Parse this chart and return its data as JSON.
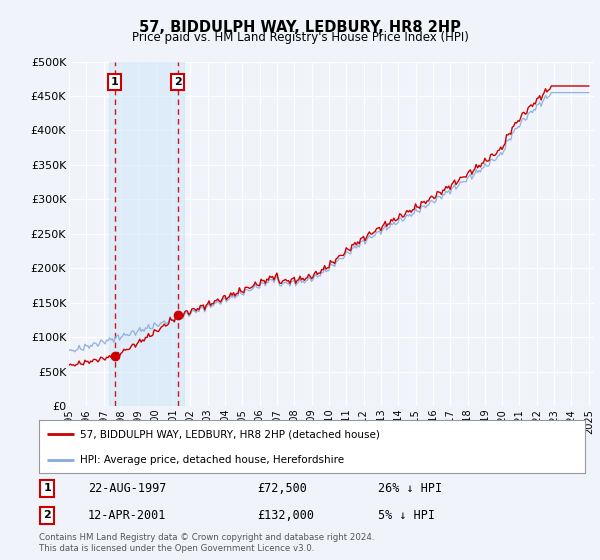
{
  "title": "57, BIDDULPH WAY, LEDBURY, HR8 2HP",
  "subtitle": "Price paid vs. HM Land Registry's House Price Index (HPI)",
  "ylim": [
    0,
    500000
  ],
  "yticks": [
    0,
    50000,
    100000,
    150000,
    200000,
    250000,
    300000,
    350000,
    400000,
    450000,
    500000
  ],
  "ytick_labels": [
    "£0",
    "£50K",
    "£100K",
    "£150K",
    "£200K",
    "£250K",
    "£300K",
    "£350K",
    "£400K",
    "£450K",
    "£500K"
  ],
  "background_color": "#f0f4fa",
  "grid_color": "#ffffff",
  "sale1": {
    "date_num": 1997.644,
    "price": 72500,
    "label": "1",
    "date_str": "22-AUG-1997",
    "pct": "26% ↓ HPI"
  },
  "sale2": {
    "date_num": 2001.278,
    "price": 132000,
    "label": "2",
    "date_str": "12-APR-2001",
    "pct": "5% ↓ HPI"
  },
  "legend_line1": "57, BIDDULPH WAY, LEDBURY, HR8 2HP (detached house)",
  "legend_line2": "HPI: Average price, detached house, Herefordshire",
  "footer": "Contains HM Land Registry data © Crown copyright and database right 2024.\nThis data is licensed under the Open Government Licence v3.0.",
  "line_color_red": "#cc0000",
  "line_color_blue": "#88aadd",
  "shade_color": "#d0e4f7"
}
